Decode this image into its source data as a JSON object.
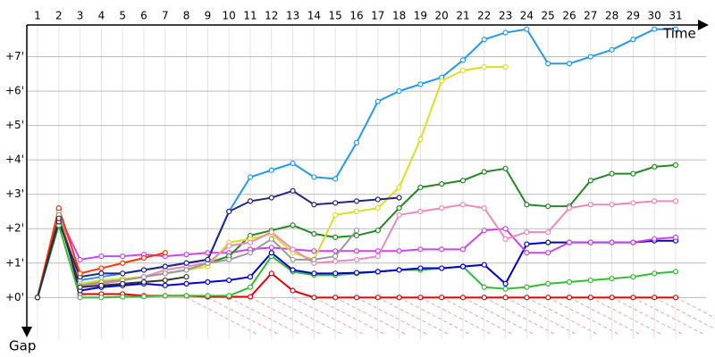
{
  "chart_data": {
    "type": "line",
    "x_label": "Time",
    "y_label": "Gap",
    "categories": [
      "1",
      "2",
      "3",
      "4",
      "5",
      "6",
      "7",
      "8",
      "9",
      "10",
      "11",
      "12",
      "13",
      "14",
      "15",
      "16",
      "17",
      "18",
      "19",
      "20",
      "21",
      "22",
      "23",
      "24",
      "25",
      "26",
      "27",
      "28",
      "29",
      "30",
      "31"
    ],
    "ylim": [
      -0.9,
      8
    ],
    "yticks": [
      {
        "value": 0,
        "label": "+0'"
      },
      {
        "value": 1,
        "label": "+1'"
      },
      {
        "value": 2,
        "label": "+2'"
      },
      {
        "value": 3,
        "label": "+3'"
      },
      {
        "value": 4,
        "label": "+4'"
      },
      {
        "value": 5,
        "label": "+5'"
      },
      {
        "value": 6,
        "label": "+6'"
      },
      {
        "value": 7,
        "label": "+7'"
      }
    ],
    "grid": true,
    "series": [
      {
        "color": "#e00000",
        "values": [
          0,
          2.55,
          0.1,
          0.1,
          0.1,
          0.05,
          0.05,
          0.05,
          0.02,
          0.02,
          0.02,
          0.7,
          0.2,
          0,
          0,
          0,
          0,
          0,
          0,
          0,
          0,
          0,
          0,
          0,
          0,
          0,
          0,
          0,
          0,
          0,
          0
        ]
      },
      {
        "color": "#33bb33",
        "values": [
          0,
          2.1,
          0,
          0,
          0.02,
          0.03,
          0.05,
          0.05,
          0.05,
          0.05,
          0.3,
          1.2,
          0.75,
          0.65,
          0.65,
          0.7,
          0.75,
          0.8,
          0.8,
          0.85,
          0.9,
          0.3,
          0.25,
          0.3,
          0.4,
          0.45,
          0.5,
          0.55,
          0.6,
          0.7,
          0.75
        ]
      },
      {
        "color": "#0000cc",
        "values": [
          0,
          2.4,
          0.2,
          0.3,
          0.35,
          0.4,
          0.35,
          0.4,
          0.45,
          0.5,
          0.6,
          1.3,
          0.8,
          0.7,
          0.7,
          0.72,
          0.75,
          0.8,
          0.85,
          0.85,
          0.9,
          0.95,
          0.4,
          1.55,
          1.6,
          1.6,
          1.6,
          1.6,
          1.6,
          1.65,
          1.65
        ]
      },
      {
        "color": "#cc44ee",
        "values": [
          0,
          2.4,
          1.1,
          1.2,
          1.2,
          1.25,
          1.2,
          1.25,
          1.3,
          1.3,
          1.4,
          1.45,
          1.4,
          1.35,
          1.35,
          1.35,
          1.35,
          1.35,
          1.4,
          1.4,
          1.4,
          1.95,
          2.0,
          1.3,
          1.3,
          1.6,
          1.6,
          1.6,
          1.6,
          1.7,
          1.75
        ]
      },
      {
        "color": "#228822",
        "values": [
          0,
          2.4,
          0.3,
          0.4,
          0.5,
          0.6,
          0.7,
          0.8,
          1.0,
          1.2,
          1.8,
          1.95,
          2.1,
          1.85,
          1.75,
          1.8,
          1.95,
          2.6,
          3.2,
          3.3,
          3.4,
          3.65,
          3.75,
          2.7,
          2.65,
          2.65,
          3.4,
          3.6,
          3.6,
          3.8,
          3.85
        ]
      },
      {
        "color": "#2299ee",
        "values": [
          0,
          2.3,
          0.5,
          0.6,
          0.7,
          0.8,
          0.9,
          1.0,
          1.1,
          2.5,
          3.5,
          3.7,
          3.9,
          3.5,
          3.45,
          4.5,
          5.7,
          6.0,
          6.2,
          6.4,
          6.9,
          7.5,
          7.7,
          7.8,
          6.8,
          6.8,
          7.0,
          7.2,
          7.5,
          7.8,
          7.8
        ]
      },
      {
        "color": "#dddd22",
        "values": [
          0,
          2.4,
          0.4,
          0.5,
          0.55,
          0.6,
          0.7,
          0.8,
          0.9,
          1.6,
          1.7,
          1.85,
          1.3,
          1.1,
          2.4,
          2.5,
          2.6,
          3.2,
          4.6,
          6.3,
          6.6,
          6.7,
          6.7,
          null,
          null,
          null,
          null,
          null,
          null,
          null,
          null
        ]
      },
      {
        "color": "#ee88bb",
        "values": [
          0,
          2.5,
          0.3,
          0.4,
          0.5,
          0.6,
          0.8,
          0.9,
          1.0,
          1.5,
          1.6,
          1.9,
          1.4,
          1.0,
          1.05,
          1.1,
          1.2,
          2.4,
          2.5,
          2.6,
          2.7,
          2.6,
          1.7,
          1.9,
          1.9,
          2.6,
          2.7,
          2.7,
          2.75,
          2.8,
          2.8
        ]
      },
      {
        "color": "#999999",
        "values": [
          0,
          2.4,
          0.35,
          0.45,
          0.5,
          0.6,
          0.7,
          0.8,
          1.0,
          1.1,
          1.3,
          1.7,
          1.1,
          1.1,
          1.2,
          1.95,
          null,
          null,
          null,
          null,
          null,
          null,
          null,
          null,
          null,
          null,
          null,
          null,
          null,
          null,
          null
        ]
      },
      {
        "color": "#222288",
        "values": [
          0,
          2.2,
          0.6,
          0.7,
          0.7,
          0.8,
          0.9,
          1.0,
          1.1,
          2.5,
          2.8,
          2.9,
          3.1,
          2.7,
          2.75,
          2.8,
          2.85,
          2.9,
          null,
          null,
          null,
          null,
          null,
          null,
          null,
          null,
          null,
          null,
          null,
          null,
          null
        ]
      },
      {
        "color": "#ff3300",
        "values": [
          0,
          2.6,
          0.7,
          0.85,
          1.0,
          1.15,
          1.3,
          null,
          null,
          null,
          null,
          null,
          null,
          null,
          null,
          null,
          null,
          null,
          null,
          null,
          null,
          null,
          null,
          null,
          null,
          null,
          null,
          null,
          null,
          null,
          null
        ]
      },
      {
        "color": "#333333",
        "values": [
          0,
          2.3,
          0.3,
          0.35,
          0.4,
          0.45,
          0.5,
          0.6,
          null,
          null,
          null,
          null,
          null,
          null,
          null,
          null,
          null,
          null,
          null,
          null,
          null,
          null,
          null,
          null,
          null,
          null,
          null,
          null,
          null,
          null,
          null
        ]
      }
    ]
  }
}
